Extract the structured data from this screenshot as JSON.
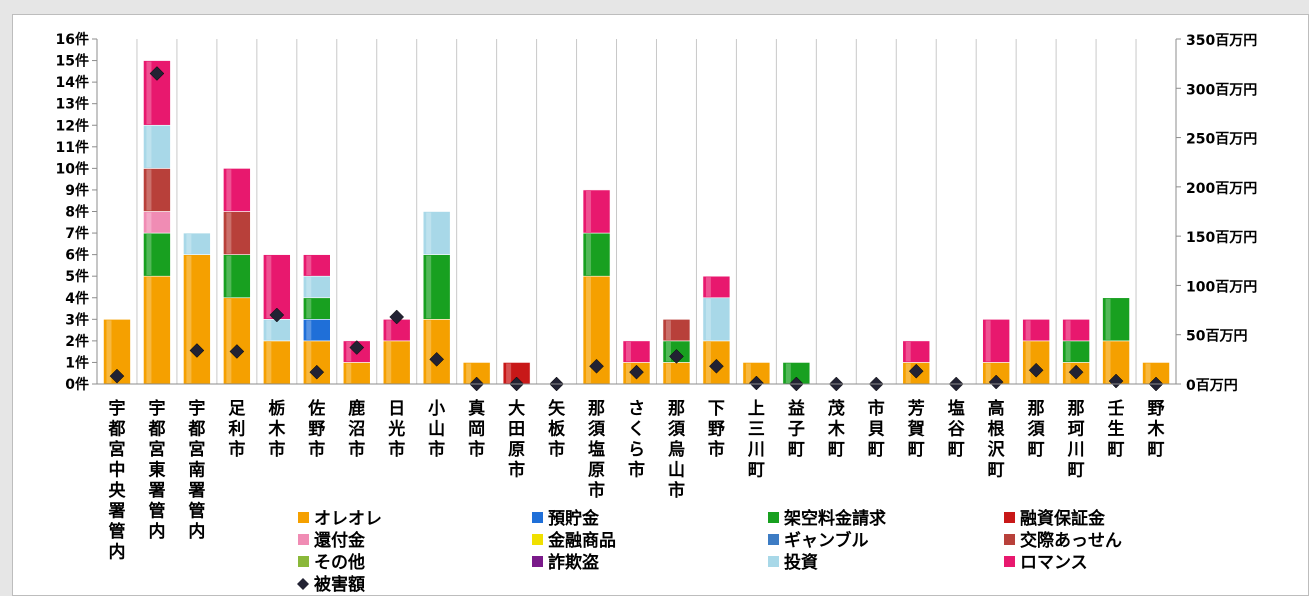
{
  "chart_data": {
    "type": "bar",
    "stacked": true,
    "title": "",
    "y_left": {
      "unit": "件",
      "min": 0,
      "max": 16,
      "ticks": [
        "0件",
        "1件",
        "2件",
        "3件",
        "4件",
        "5件",
        "6件",
        "7件",
        "8件",
        "9件",
        "10件",
        "11件",
        "12件",
        "13件",
        "14件",
        "15件",
        "16件"
      ]
    },
    "y_right": {
      "unit": "百万円",
      "min": 0,
      "max": 350,
      "ticks": [
        "0百万円",
        "50百万円",
        "100百万円",
        "150百万円",
        "200百万円",
        "250百万円",
        "300百万円",
        "350百万円"
      ]
    },
    "grid": "vertical",
    "legend_position": "bottom",
    "categories": [
      "宇都宮中央署管内",
      "宇都宮東署管内",
      "宇都宮南署管内",
      "足利市",
      "栃木市",
      "佐野市",
      "鹿沼市",
      "日光市",
      "小山市",
      "真岡市",
      "大田原市",
      "矢板市",
      "那須塩原市",
      "さくら市",
      "那須烏山市",
      "下野市",
      "上三川町",
      "益子町",
      "茂木町",
      "市貝町",
      "芳賀町",
      "塩谷町",
      "高根沢町",
      "那須町",
      "那珂川町",
      "壬生町",
      "野木町"
    ],
    "series": [
      {
        "name": "オレオレ",
        "color": "#f5a000",
        "values": [
          3,
          5,
          6,
          4,
          2,
          2,
          1,
          2,
          3,
          1,
          0,
          0,
          5,
          1,
          1,
          2,
          1,
          0,
          0,
          0,
          1,
          0,
          1,
          2,
          1,
          2,
          1
        ]
      },
      {
        "name": "預貯金",
        "color": "#1f6fd8",
        "values": [
          0,
          0,
          0,
          0,
          0,
          1,
          0,
          0,
          0,
          0,
          0,
          0,
          0,
          0,
          0,
          0,
          0,
          0,
          0,
          0,
          0,
          0,
          0,
          0,
          0,
          0,
          0
        ]
      },
      {
        "name": "架空料金請求",
        "color": "#18a020",
        "values": [
          0,
          2,
          0,
          2,
          0,
          1,
          0,
          0,
          3,
          0,
          0,
          0,
          2,
          0,
          1,
          0,
          0,
          1,
          0,
          0,
          0,
          0,
          0,
          0,
          1,
          2,
          0
        ]
      },
      {
        "name": "融資保証金",
        "color": "#c81818",
        "values": [
          0,
          0,
          0,
          0,
          0,
          0,
          0,
          0,
          0,
          0,
          1,
          0,
          0,
          0,
          0,
          0,
          0,
          0,
          0,
          0,
          0,
          0,
          0,
          0,
          0,
          0,
          0
        ]
      },
      {
        "name": "還付金",
        "color": "#f08cb4",
        "values": [
          0,
          1,
          0,
          0,
          0,
          0,
          0,
          0,
          0,
          0,
          0,
          0,
          0,
          0,
          0,
          0,
          0,
          0,
          0,
          0,
          0,
          0,
          0,
          0,
          0,
          0,
          0
        ]
      },
      {
        "name": "金融商品",
        "color": "#f0e000",
        "values": [
          0,
          0,
          0,
          0,
          0,
          0,
          0,
          0,
          0,
          0,
          0,
          0,
          0,
          0,
          0,
          0,
          0,
          0,
          0,
          0,
          0,
          0,
          0,
          0,
          0,
          0,
          0
        ]
      },
      {
        "name": "ギャンブル",
        "color": "#3d7cc4",
        "values": [
          0,
          0,
          0,
          0,
          0,
          0,
          0,
          0,
          0,
          0,
          0,
          0,
          0,
          0,
          0,
          0,
          0,
          0,
          0,
          0,
          0,
          0,
          0,
          0,
          0,
          0,
          0
        ]
      },
      {
        "name": "交際あっせん",
        "color": "#b8403a",
        "values": [
          0,
          2,
          0,
          2,
          0,
          0,
          0,
          0,
          0,
          0,
          0,
          0,
          0,
          0,
          1,
          0,
          0,
          0,
          0,
          0,
          0,
          0,
          0,
          0,
          0,
          0,
          0
        ]
      },
      {
        "name": "その他",
        "color": "#8ab83a",
        "values": [
          0,
          0,
          0,
          0,
          0,
          0,
          0,
          0,
          0,
          0,
          0,
          0,
          0,
          0,
          0,
          0,
          0,
          0,
          0,
          0,
          0,
          0,
          0,
          0,
          0,
          0,
          0
        ]
      },
      {
        "name": "詐欺盗",
        "color": "#7a1a8a",
        "values": [
          0,
          0,
          0,
          0,
          0,
          0,
          0,
          0,
          0,
          0,
          0,
          0,
          0,
          0,
          0,
          0,
          0,
          0,
          0,
          0,
          0,
          0,
          0,
          0,
          0,
          0,
          0
        ]
      },
      {
        "name": "投資",
        "color": "#a8d8e8",
        "values": [
          0,
          2,
          1,
          0,
          1,
          1,
          0,
          0,
          2,
          0,
          0,
          0,
          0,
          0,
          0,
          2,
          0,
          0,
          0,
          0,
          0,
          0,
          0,
          0,
          0,
          0,
          0
        ]
      },
      {
        "name": "ロマンス",
        "color": "#e8186e",
        "values": [
          0,
          3,
          0,
          2,
          3,
          1,
          1,
          1,
          0,
          0,
          0,
          0,
          2,
          1,
          0,
          1,
          0,
          0,
          0,
          0,
          1,
          0,
          2,
          1,
          1,
          0,
          0
        ]
      }
    ],
    "damage": {
      "name": "被害額",
      "color": "#222233",
      "unit": "百万円",
      "values": [
        8,
        315,
        34,
        33,
        70,
        12,
        37,
        68,
        25,
        0,
        0,
        0,
        18,
        12,
        28,
        18,
        1,
        0,
        0,
        0,
        13,
        0,
        2,
        14,
        12,
        3,
        0
      ]
    }
  }
}
